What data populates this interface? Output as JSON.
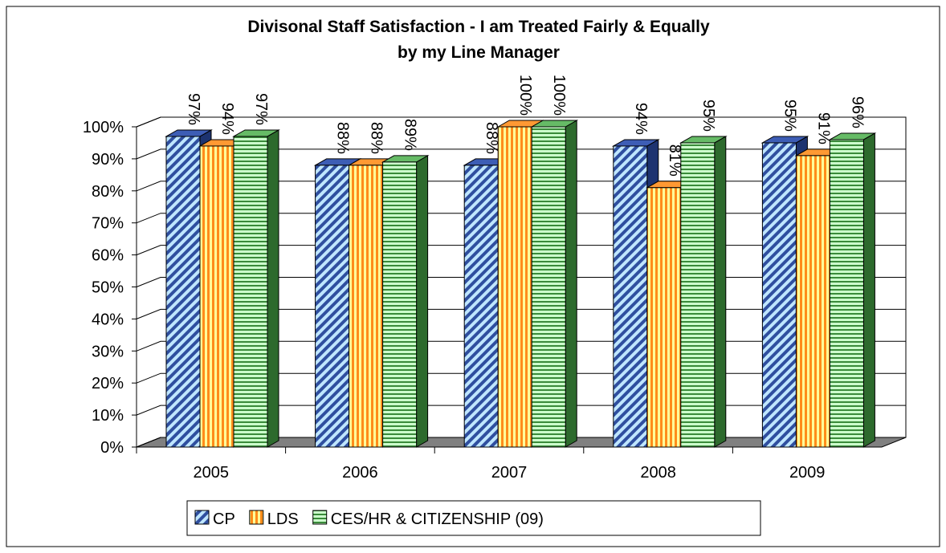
{
  "chart_data": {
    "type": "bar3d",
    "title": "Divisonal Staff Satisfaction - I am Treated Fairly & Equally",
    "subtitle": "by my Line Manager",
    "categories": [
      "2005",
      "2006",
      "2007",
      "2008",
      "2009"
    ],
    "series": [
      {
        "name": "CP",
        "color": "#2f4f9f",
        "values": [
          97,
          88,
          88,
          94,
          95
        ],
        "value_labels": [
          "97%",
          "88%",
          "88%",
          "94%",
          "95%"
        ]
      },
      {
        "name": "LDS",
        "color": "#ff8c1a",
        "values": [
          94,
          88,
          100,
          81,
          91
        ],
        "value_labels": [
          "94%",
          "88%",
          "100%",
          "81%",
          "91%"
        ]
      },
      {
        "name": "CES/HR & CITIZENSHIP (09)",
        "color": "#3a8a3a",
        "values": [
          97,
          89,
          100,
          95,
          96
        ],
        "value_labels": [
          "97%",
          "89%",
          "100%",
          "95%",
          "96%"
        ]
      }
    ],
    "ylim": [
      0,
      100
    ],
    "yticks": [
      {
        "value": 0,
        "label": "0%"
      },
      {
        "value": 10,
        "label": "10%"
      },
      {
        "value": 20,
        "label": "20%"
      },
      {
        "value": 30,
        "label": "30%"
      },
      {
        "value": 40,
        "label": "40%"
      },
      {
        "value": 50,
        "label": "50%"
      },
      {
        "value": 60,
        "label": "60%"
      },
      {
        "value": 70,
        "label": "70%"
      },
      {
        "value": 80,
        "label": "80%"
      },
      {
        "value": 90,
        "label": "90%"
      },
      {
        "value": 100,
        "label": "100%"
      }
    ],
    "grid": true,
    "legend": "bottom"
  }
}
